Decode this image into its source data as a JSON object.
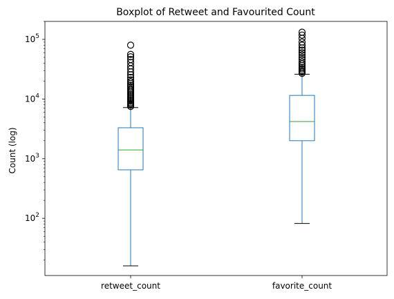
{
  "chart_data": {
    "type": "boxplot",
    "title": "Boxplot of Retweet and Favourited Count",
    "xlabel": "",
    "ylabel": "Count (log)",
    "yscale": "log",
    "ylim": [
      11,
      200000
    ],
    "y_tick_labels": [
      "10",
      "10",
      "10",
      "10"
    ],
    "y_tick_exponents": [
      "2",
      "3",
      "4",
      "5"
    ],
    "y_tick_values": [
      100,
      1000,
      10000,
      100000
    ],
    "categories": [
      "retweet_count",
      "favorite_count"
    ],
    "boxes": [
      {
        "name": "retweet_count",
        "whisker_low": 16,
        "q1": 650,
        "median": 1400,
        "q3": 3300,
        "whisker_high": 7200,
        "fliers": [
          7500,
          7900,
          8300,
          8700,
          9200,
          9700,
          10200,
          10800,
          11400,
          12000,
          12700,
          13400,
          14200,
          15000,
          16000,
          17000,
          18200,
          19500,
          21000,
          23000,
          25500,
          28500,
          32000,
          36000,
          41000,
          46000,
          51000,
          56000,
          80000
        ]
      },
      {
        "name": "favorite_count",
        "whisker_low": 82,
        "q1": 2000,
        "median": 4200,
        "q3": 11500,
        "whisker_high": 26000,
        "fliers": [
          27000,
          28500,
          30000,
          32000,
          34000,
          36500,
          39000,
          42000,
          46000,
          50000,
          55000,
          60000,
          66000,
          72000,
          80000,
          90000,
          104000,
          118000,
          132000
        ]
      }
    ],
    "colors": {
      "box": "#1f77b4",
      "median": "#2ca02c",
      "whisker_cap": "#000000",
      "flier": "#000000"
    },
    "grid": false,
    "legend": "none"
  }
}
